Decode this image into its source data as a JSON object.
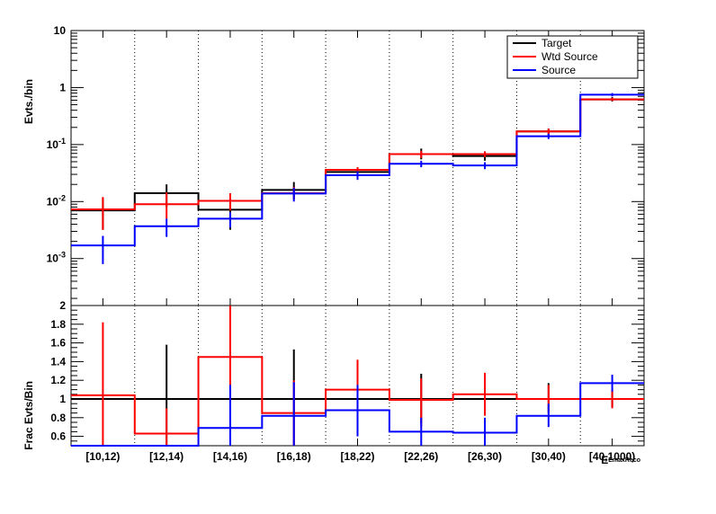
{
  "chart_data": [
    {
      "type": "step",
      "ylabel": "Evts./bin",
      "yscale": "log",
      "ylim": [
        0.00015,
        10
      ],
      "y_ticks": [
        {
          "value": 0.001,
          "base": "10",
          "exp": "-3"
        },
        {
          "value": 0.01,
          "base": "10",
          "exp": "-2"
        },
        {
          "value": 0.1,
          "base": "10",
          "exp": "-1"
        },
        {
          "value": 1,
          "label": "1"
        },
        {
          "value": 10,
          "label": "10"
        }
      ],
      "categories": [
        "[10,12)",
        "[12,14)",
        "[14,16)",
        "[16,18)",
        "[18,22)",
        "[22,26)",
        "[26,30)",
        "[30,40)",
        "[40,1000)"
      ],
      "grid": "vertical dotted at bin edges",
      "legend_position": "top-right",
      "series": [
        {
          "name": "Target",
          "color": "#000000",
          "values": [
            0.007,
            0.014,
            0.0072,
            0.016,
            0.033,
            0.068,
            0.063,
            0.17,
            0.62
          ],
          "err_low": [
            0.0032,
            0.008,
            0.0032,
            0.011,
            0.026,
            0.055,
            0.052,
            0.14,
            0.57
          ],
          "err_high": [
            0.0115,
            0.02,
            0.011,
            0.022,
            0.04,
            0.085,
            0.076,
            0.19,
            0.68
          ]
        },
        {
          "name": "Wtd Source",
          "color": "#ff0000",
          "values": [
            0.0073,
            0.009,
            0.0103,
            0.014,
            0.036,
            0.068,
            0.068,
            0.17,
            0.62
          ],
          "err_low": [
            0.0032,
            0.005,
            0.007,
            0.011,
            0.032,
            0.058,
            0.06,
            0.15,
            0.58
          ],
          "err_high": [
            0.012,
            0.0145,
            0.014,
            0.018,
            0.04,
            0.078,
            0.076,
            0.19,
            0.66
          ]
        },
        {
          "name": "Source",
          "color": "#0000ff",
          "values": [
            0.0017,
            0.0037,
            0.005,
            0.0138,
            0.029,
            0.046,
            0.043,
            0.14,
            0.75
          ],
          "err_low": [
            0.0008,
            0.0024,
            0.0035,
            0.01,
            0.024,
            0.04,
            0.037,
            0.125,
            0.7
          ],
          "err_high": [
            0.0025,
            0.005,
            0.0065,
            0.0175,
            0.034,
            0.052,
            0.049,
            0.155,
            0.8
          ]
        }
      ]
    },
    {
      "type": "step",
      "ylabel": "Frac Evts/Bin",
      "xlabel": "E",
      "xlabel_sub": "EmaxReco",
      "ylim": [
        0.5,
        2
      ],
      "y_ticks": [
        0.6,
        0.8,
        1,
        1.2,
        1.4,
        1.6,
        1.8,
        2
      ],
      "categories": [
        "[10,12)",
        "[12,14)",
        "[14,16)",
        "[16,18)",
        "[18,22)",
        "[22,26)",
        "[26,30)",
        "[30,40)",
        "[40,1000)"
      ],
      "series": [
        {
          "name": "Target",
          "color": "#000000",
          "values": [
            1,
            1,
            1,
            1,
            1,
            1,
            1,
            1,
            1
          ],
          "err_low": [
            1,
            0.5,
            1,
            0.5,
            1,
            0.74,
            1,
            0.85,
            0.91
          ],
          "err_high": [
            1,
            1.58,
            1,
            1.53,
            1,
            1.27,
            1,
            1.17,
            1.09
          ]
        },
        {
          "name": "Wtd Source",
          "color": "#ff0000",
          "values": [
            1.04,
            0.63,
            1.45,
            0.85,
            1.1,
            0.99,
            1.05,
            1,
            1
          ],
          "err_low": [
            0.5,
            0.5,
            0.95,
            0.5,
            0.78,
            0.7,
            0.82,
            0.85,
            0.9
          ],
          "err_high": [
            1.82,
            0.9,
            2.0,
            1.2,
            1.42,
            1.22,
            1.28,
            1.15,
            1.1
          ]
        },
        {
          "name": "Source",
          "color": "#0000ff",
          "values": [
            0.5,
            0.5,
            0.69,
            0.82,
            0.88,
            0.65,
            0.64,
            0.82,
            1.17
          ],
          "err_low": [
            0.5,
            0.5,
            0.5,
            0.5,
            0.6,
            0.5,
            0.5,
            0.7,
            1.08
          ],
          "err_high": [
            0.5,
            0.5,
            1.15,
            1.18,
            1.15,
            0.8,
            0.8,
            0.95,
            1.26
          ]
        }
      ]
    }
  ]
}
